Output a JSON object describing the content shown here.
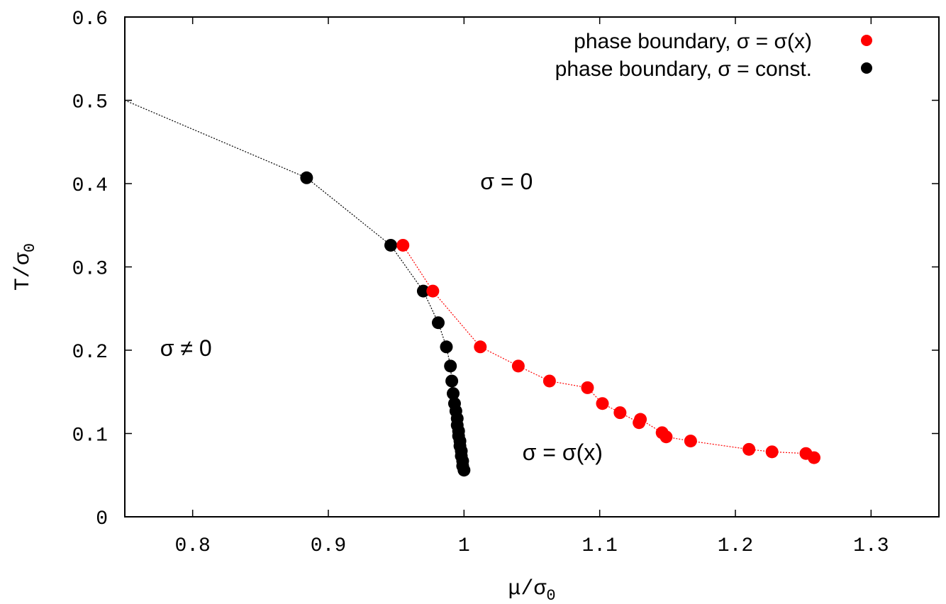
{
  "chart_data": {
    "type": "scatter",
    "xlabel": "μ/σ",
    "xlabel_sub": "0",
    "ylabel": "T/σ",
    "ylabel_sub": "0",
    "xlim": [
      0.75,
      1.35
    ],
    "ylim": [
      0,
      0.6
    ],
    "xticks": [
      0.8,
      0.9,
      1.0,
      1.1,
      1.2,
      1.3
    ],
    "xtick_labels": [
      "0.8",
      "0.9",
      "1",
      "1.1",
      "1.2",
      "1.3"
    ],
    "yticks": [
      0,
      0.1,
      0.2,
      0.3,
      0.4,
      0.5,
      0.6
    ],
    "ytick_labels": [
      "0",
      "0.1",
      "0.2",
      "0.3",
      "0.4",
      "0.5",
      "0.6"
    ],
    "grid": false,
    "legend_position": "top-right",
    "series": [
      {
        "name": "phase boundary, σ = σ(x)",
        "color": "#ff0000",
        "line_style": "dotted",
        "x": [
          0.955,
          0.977,
          1.012,
          1.04,
          1.063,
          1.091,
          1.102,
          1.115,
          1.129,
          1.13,
          1.146,
          1.149,
          1.167,
          1.21,
          1.227,
          1.252,
          1.258
        ],
        "y": [
          0.326,
          0.271,
          0.204,
          0.181,
          0.163,
          0.155,
          0.136,
          0.125,
          0.113,
          0.117,
          0.101,
          0.096,
          0.091,
          0.081,
          0.078,
          0.076,
          0.071
        ]
      },
      {
        "name": "phase boundary, σ = const.",
        "color": "#000000",
        "line_style": "dotted",
        "x": [
          0.75,
          0.884,
          0.946,
          0.97,
          0.981,
          0.987,
          0.99,
          0.991,
          0.992,
          0.993,
          0.994,
          0.995,
          0.995,
          0.996,
          0.996,
          0.997,
          0.997,
          0.998,
          0.998,
          0.999,
          0.999,
          1.0
        ],
        "y": [
          0.5,
          0.407,
          0.326,
          0.271,
          0.233,
          0.204,
          0.181,
          0.163,
          0.148,
          0.136,
          0.127,
          0.118,
          0.11,
          0.103,
          0.097,
          0.091,
          0.085,
          0.079,
          0.073,
          0.067,
          0.061,
          0.056
        ],
        "hidden_marker_indices": [
          0
        ]
      }
    ],
    "annotations": [
      {
        "text": "σ = 0",
        "x": 1.012,
        "y": 0.393
      },
      {
        "text": "σ ≠ 0",
        "x": 0.776,
        "y": 0.193
      },
      {
        "text": "σ = σ(x)",
        "x": 1.043,
        "y": 0.068
      }
    ]
  }
}
